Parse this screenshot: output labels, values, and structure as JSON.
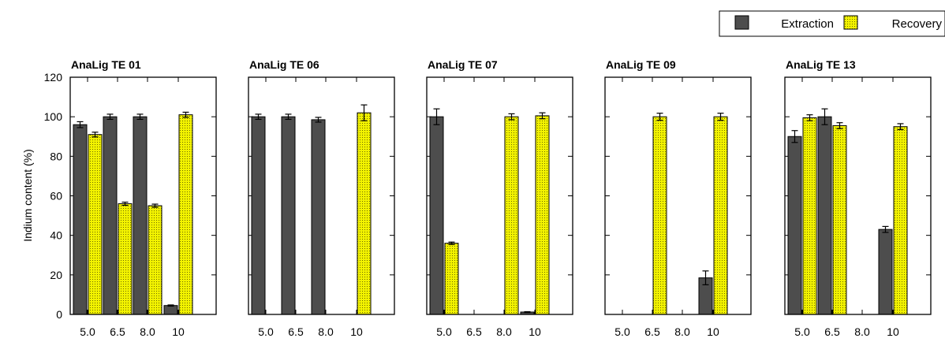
{
  "chart_data": {
    "type": "bar",
    "ylabel": "Indium content (%)",
    "ylim": [
      0,
      120
    ],
    "yticks": [
      0,
      20,
      40,
      60,
      80,
      100,
      120
    ],
    "categories": [
      "5.0",
      "6.5",
      "8.0",
      "10"
    ],
    "legend": {
      "position": "top-right",
      "entries": [
        {
          "label": "Extraction",
          "color": "#4d4d4d"
        },
        {
          "label": "Recovery",
          "color": "#f2f200"
        }
      ]
    },
    "panels": [
      {
        "title": "AnaLig TE 01",
        "series": [
          {
            "name": "Extraction",
            "values": [
              96,
              100,
              100,
              4.5
            ],
            "errors": [
              1.5,
              1.3,
              1.3,
              0.3
            ]
          },
          {
            "name": "Recovery",
            "values": [
              91,
              56,
              55,
              101
            ],
            "errors": [
              1.2,
              0.8,
              0.8,
              1.3
            ]
          }
        ]
      },
      {
        "title": "AnaLig TE 06",
        "series": [
          {
            "name": "Extraction",
            "values": [
              100,
              100,
              98.5,
              0
            ],
            "errors": [
              1.3,
              1.3,
              1.2,
              0
            ]
          },
          {
            "name": "Recovery",
            "values": [
              0,
              0,
              0,
              102
            ],
            "errors": [
              0,
              0,
              0,
              4
            ]
          }
        ]
      },
      {
        "title": "AnaLig TE 07",
        "series": [
          {
            "name": "Extraction",
            "values": [
              100,
              0,
              0,
              1.2
            ],
            "errors": [
              4,
              0,
              0,
              0.2
            ]
          },
          {
            "name": "Recovery",
            "values": [
              36,
              0,
              100,
              100.5
            ],
            "errors": [
              0.6,
              0,
              1.5,
              1.5
            ]
          }
        ]
      },
      {
        "title": "AnaLig TE 09",
        "series": [
          {
            "name": "Extraction",
            "values": [
              0,
              0,
              0,
              18.5
            ],
            "errors": [
              0,
              0,
              0,
              3.5
            ]
          },
          {
            "name": "Recovery",
            "values": [
              0,
              100,
              0,
              100
            ],
            "errors": [
              0,
              1.8,
              0,
              1.8
            ]
          }
        ]
      },
      {
        "title": "AnaLig TE 13",
        "series": [
          {
            "name": "Extraction",
            "values": [
              90,
              100,
              0,
              43
            ],
            "errors": [
              3,
              4,
              0,
              1.5
            ]
          },
          {
            "name": "Recovery",
            "values": [
              99.5,
              95.5,
              0,
              95
            ],
            "errors": [
              1.5,
              1.5,
              0,
              1.5
            ]
          }
        ]
      }
    ]
  }
}
